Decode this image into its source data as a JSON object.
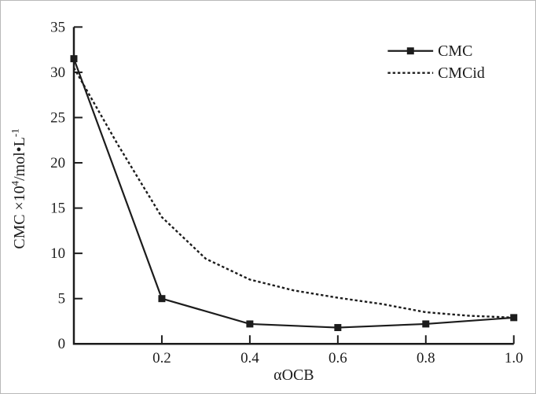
{
  "chart_data": {
    "type": "line",
    "title": "",
    "xlabel": "αOCB",
    "ylabel": "CMC ×10⁴/mol•L⁻¹",
    "ylabel_parts": [
      {
        "text": "CMC ×10",
        "sup": false
      },
      {
        "text": "4",
        "sup": true
      },
      {
        "text": "/mol•L",
        "sup": false
      },
      {
        "text": "-1",
        "sup": true
      }
    ],
    "xlim": [
      0,
      1.0
    ],
    "ylim": [
      0,
      35
    ],
    "xticks": [
      0.2,
      0.4,
      0.6,
      0.8,
      1.0
    ],
    "xtick_labels": [
      "0.2",
      "0.4",
      "0.6",
      "0.8",
      "1.0"
    ],
    "yticks": [
      0,
      5,
      10,
      15,
      20,
      25,
      30,
      35
    ],
    "ytick_labels": [
      "0",
      "5",
      "10",
      "15",
      "20",
      "25",
      "30",
      "35"
    ],
    "grid": false,
    "legend_position": "top-right",
    "legend_entries": [
      "CMC",
      "CMCid"
    ],
    "ink_color": "#1c1c1c",
    "background": "#ffffff",
    "series": [
      {
        "name": "CMC",
        "line": "solid",
        "marker": "square",
        "x": [
          0,
          0.2,
          0.4,
          0.6,
          0.8,
          1.0
        ],
        "y": [
          31.5,
          5.0,
          2.2,
          1.8,
          2.2,
          2.9
        ]
      },
      {
        "name": "CMCid",
        "line": "dashed",
        "marker": "none",
        "x": [
          0,
          0.1,
          0.2,
          0.3,
          0.4,
          0.5,
          0.6,
          0.7,
          0.8,
          0.9,
          1.0
        ],
        "y": [
          30.5,
          22.0,
          14.0,
          9.4,
          7.1,
          5.9,
          5.1,
          4.4,
          3.5,
          3.1,
          2.9
        ]
      }
    ]
  }
}
